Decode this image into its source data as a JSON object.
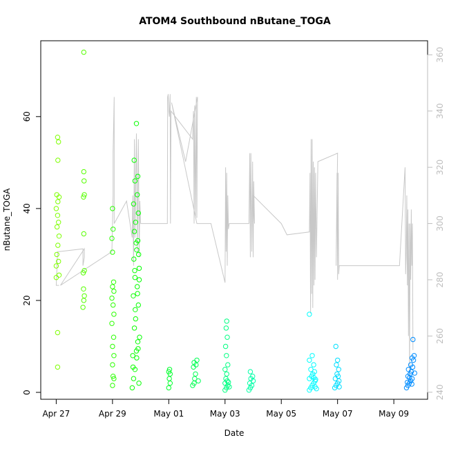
{
  "chart_data": {
    "type": "scatter",
    "title": "ATOM4 Southbound nButane_TOGA",
    "xlabel": "Date",
    "ylabel": "nButane_TOGA",
    "x_ticks": [
      "Apr 27",
      "Apr 29",
      "May 01",
      "May 03",
      "May 05",
      "May 07",
      "May 09"
    ],
    "x_tick_days": [
      0,
      2,
      4,
      6,
      8,
      10,
      12
    ],
    "y_ticks": [
      0,
      20,
      40,
      60
    ],
    "y_right_ticks": [
      240,
      260,
      280,
      300,
      320,
      340,
      360
    ],
    "xlim_days": [
      -0.55,
      13.2
    ],
    "ylim": [
      -1.5,
      76.5
    ],
    "y_right_lim": [
      237.5,
      365
    ],
    "x_unit": "days since Apr 27",
    "grid": false,
    "series": [
      {
        "type": "scatter",
        "points": [
          [
            0.05,
            5.5
          ],
          [
            0.05,
            13
          ],
          [
            0.0,
            25
          ],
          [
            0.1,
            25.5
          ],
          [
            0.0,
            27.5
          ],
          [
            0.08,
            28.5
          ],
          [
            0.02,
            30
          ],
          [
            0.06,
            32
          ],
          [
            0.1,
            34
          ],
          [
            0.03,
            36
          ],
          [
            0.08,
            37
          ],
          [
            0.05,
            38.5
          ],
          [
            0.0,
            40
          ],
          [
            0.06,
            41.5
          ],
          [
            0.1,
            42.5
          ],
          [
            0.02,
            43
          ],
          [
            0.06,
            50.5
          ],
          [
            0.08,
            54.5
          ],
          [
            0.05,
            55.5
          ],
          [
            0.95,
            18.5
          ],
          [
            0.98,
            20
          ],
          [
            1.0,
            21
          ],
          [
            0.97,
            22.5
          ],
          [
            0.96,
            26
          ],
          [
            1.0,
            26.5
          ],
          [
            0.98,
            34.5
          ],
          [
            0.97,
            42.5
          ],
          [
            1.0,
            43
          ],
          [
            0.99,
            46
          ],
          [
            0.98,
            48
          ],
          [
            0.98,
            74
          ],
          [
            2.0,
            1.5
          ],
          [
            2.05,
            3
          ],
          [
            2.02,
            3.5
          ],
          [
            2.0,
            6
          ],
          [
            2.05,
            8
          ],
          [
            2.0,
            10
          ],
          [
            2.04,
            12
          ],
          [
            1.98,
            15
          ],
          [
            2.05,
            17
          ],
          [
            2.02,
            19
          ],
          [
            1.98,
            20.5
          ],
          [
            2.05,
            22
          ],
          [
            2.0,
            23
          ],
          [
            2.04,
            24
          ],
          [
            2.0,
            30.5
          ],
          [
            1.98,
            33.5
          ],
          [
            2.02,
            35.5
          ],
          [
            2.0,
            40
          ],
          [
            2.7,
            1
          ],
          [
            2.75,
            3
          ],
          [
            2.8,
            5
          ],
          [
            2.72,
            8
          ],
          [
            2.85,
            9
          ],
          [
            2.9,
            11
          ],
          [
            2.78,
            14
          ],
          [
            2.82,
            16
          ],
          [
            2.92,
            19
          ],
          [
            2.74,
            21
          ],
          [
            2.88,
            23
          ],
          [
            2.8,
            25
          ],
          [
            2.95,
            27
          ],
          [
            2.76,
            29
          ],
          [
            2.86,
            31
          ],
          [
            2.9,
            33
          ],
          [
            2.78,
            35
          ],
          [
            2.82,
            37
          ],
          [
            2.92,
            39
          ],
          [
            2.75,
            41
          ],
          [
            2.88,
            43
          ],
          [
            2.8,
            46
          ],
          [
            2.9,
            47
          ],
          [
            2.77,
            50.5
          ],
          [
            2.85,
            58.5
          ],
          [
            2.94,
            2
          ],
          [
            2.73,
            5.5
          ],
          [
            2.96,
            12
          ],
          [
            2.81,
            18
          ],
          [
            2.89,
            21.5
          ],
          [
            2.95,
            24.5
          ],
          [
            2.79,
            26.5
          ],
          [
            2.93,
            30
          ],
          [
            2.84,
            32.5
          ],
          [
            2.91,
            9.5
          ],
          [
            2.86,
            7.5
          ],
          [
            4.0,
            1
          ],
          [
            4.05,
            2
          ],
          [
            4.02,
            3
          ],
          [
            4.05,
            4
          ],
          [
            4.0,
            4.5
          ],
          [
            4.03,
            5
          ],
          [
            4.85,
            1.5
          ],
          [
            4.9,
            2
          ],
          [
            4.92,
            3
          ],
          [
            4.95,
            4
          ],
          [
            4.88,
            5.5
          ],
          [
            4.97,
            6
          ],
          [
            4.9,
            6.5
          ],
          [
            5.0,
            7
          ],
          [
            5.05,
            2.5
          ],
          [
            6.0,
            0.5
          ],
          [
            6.05,
            1
          ],
          [
            6.1,
            1.5
          ],
          [
            6.0,
            2
          ],
          [
            6.08,
            2.5
          ],
          [
            6.03,
            3
          ],
          [
            6.06,
            4
          ],
          [
            6.0,
            5
          ],
          [
            6.1,
            6
          ],
          [
            6.05,
            8
          ],
          [
            6.02,
            10
          ],
          [
            6.08,
            12
          ],
          [
            6.04,
            14
          ],
          [
            6.06,
            15.5
          ],
          [
            6.12,
            2.2
          ],
          [
            6.15,
            1.2
          ],
          [
            6.85,
            0.5
          ],
          [
            6.9,
            1
          ],
          [
            6.95,
            1.5
          ],
          [
            6.88,
            2
          ],
          [
            7.0,
            2.5
          ],
          [
            6.92,
            3
          ],
          [
            6.98,
            3.5
          ],
          [
            6.9,
            4.5
          ],
          [
            9.0,
            0.5
          ],
          [
            9.05,
            1
          ],
          [
            9.1,
            1.5
          ],
          [
            9.15,
            2
          ],
          [
            9.2,
            2.5
          ],
          [
            9.0,
            3
          ],
          [
            9.08,
            3.5
          ],
          [
            9.12,
            4
          ],
          [
            9.18,
            4.5
          ],
          [
            9.05,
            5
          ],
          [
            9.15,
            6
          ],
          [
            9.0,
            7
          ],
          [
            9.1,
            8
          ],
          [
            9.2,
            1.2
          ],
          [
            9.25,
            0.8
          ],
          [
            9.0,
            17
          ],
          [
            9.22,
            2.8
          ],
          [
            9.16,
            3.2
          ],
          [
            9.9,
            1
          ],
          [
            9.95,
            1.5
          ],
          [
            10.0,
            2
          ],
          [
            10.05,
            2.5
          ],
          [
            9.92,
            3
          ],
          [
            10.02,
            3.5
          ],
          [
            9.98,
            4
          ],
          [
            10.04,
            5
          ],
          [
            9.96,
            6
          ],
          [
            10.0,
            7
          ],
          [
            9.94,
            10
          ],
          [
            10.06,
            1.2
          ],
          [
            12.45,
            1
          ],
          [
            12.5,
            1.5
          ],
          [
            12.55,
            2
          ],
          [
            12.6,
            2.5
          ],
          [
            12.65,
            3
          ],
          [
            12.5,
            3.5
          ],
          [
            12.58,
            4
          ],
          [
            12.62,
            4.5
          ],
          [
            12.52,
            5
          ],
          [
            12.67,
            5.5
          ],
          [
            12.6,
            6
          ],
          [
            12.7,
            7
          ],
          [
            12.65,
            7.5
          ],
          [
            12.72,
            8
          ],
          [
            12.68,
            11.5
          ],
          [
            12.48,
            2.2
          ],
          [
            12.56,
            3.2
          ],
          [
            12.64,
            1.8
          ],
          [
            12.74,
            4.2
          ]
        ]
      },
      {
        "type": "line",
        "axis": "right",
        "points": [
          [
            0.1,
            278
          ],
          [
            0.0,
            278
          ],
          [
            0.05,
            290
          ],
          [
            0.1,
            290
          ],
          [
            0.95,
            291
          ],
          [
            0.95,
            285
          ],
          [
            1.0,
            288
          ],
          [
            1.0,
            291
          ],
          [
            0.15,
            278
          ],
          [
            1.98,
            290
          ],
          [
            2.02,
            310
          ],
          [
            2.02,
            325
          ],
          [
            2.06,
            345
          ],
          [
            2.06,
            300
          ],
          [
            2.5,
            308
          ],
          [
            2.7,
            295
          ],
          [
            2.72,
            310
          ],
          [
            2.75,
            285
          ],
          [
            2.78,
            330
          ],
          [
            2.8,
            295
          ],
          [
            2.85,
            332
          ],
          [
            2.88,
            290
          ],
          [
            2.92,
            330
          ],
          [
            2.95,
            288
          ],
          [
            2.97,
            308
          ],
          [
            3.0,
            300
          ],
          [
            3.95,
            300
          ],
          [
            3.96,
            345
          ],
          [
            3.98,
            346
          ],
          [
            4.0,
            340
          ],
          [
            4.02,
            338
          ],
          [
            4.05,
            346
          ],
          [
            4.06,
            300
          ],
          [
            4.08,
            340
          ],
          [
            4.85,
            330
          ],
          [
            4.88,
            340
          ],
          [
            4.9,
            300
          ],
          [
            4.92,
            342
          ],
          [
            4.95,
            302
          ],
          [
            4.98,
            345
          ],
          [
            5.0,
            302
          ],
          [
            5.02,
            345
          ],
          [
            4.6,
            322
          ],
          [
            4.1,
            343
          ],
          [
            5.0,
            300
          ],
          [
            5.5,
            300
          ],
          [
            6.0,
            279
          ],
          [
            6.02,
            320
          ],
          [
            6.04,
            290
          ],
          [
            6.06,
            318
          ],
          [
            6.08,
            285
          ],
          [
            6.1,
            310
          ],
          [
            6.12,
            298
          ],
          [
            6.15,
            300
          ],
          [
            6.85,
            300
          ],
          [
            6.88,
            325
          ],
          [
            6.9,
            288
          ],
          [
            6.92,
            325
          ],
          [
            6.95,
            290
          ],
          [
            6.98,
            322
          ],
          [
            7.0,
            288
          ],
          [
            7.02,
            315
          ],
          [
            7.05,
            300
          ],
          [
            7.0,
            310
          ],
          [
            8.0,
            300
          ],
          [
            8.2,
            296
          ],
          [
            9.0,
            297
          ],
          [
            9.02,
            318
          ],
          [
            9.04,
            268
          ],
          [
            9.06,
            330
          ],
          [
            9.08,
            275
          ],
          [
            9.1,
            330
          ],
          [
            9.12,
            270
          ],
          [
            9.14,
            322
          ],
          [
            9.16,
            278
          ],
          [
            9.18,
            320
          ],
          [
            9.2,
            280
          ],
          [
            9.22,
            318
          ],
          [
            9.25,
            288
          ],
          [
            9.3,
            322
          ],
          [
            10.0,
            325
          ],
          [
            9.95,
            285
          ],
          [
            9.98,
            318
          ],
          [
            10.0,
            280
          ],
          [
            10.02,
            318
          ],
          [
            10.04,
            282
          ],
          [
            10.06,
            285
          ],
          [
            12.2,
            285
          ],
          [
            12.4,
            320
          ],
          [
            12.42,
            282
          ],
          [
            12.44,
            288
          ],
          [
            12.46,
            310
          ],
          [
            12.48,
            278
          ],
          [
            12.5,
            305
          ],
          [
            12.52,
            260
          ],
          [
            12.54,
            300
          ],
          [
            12.56,
            245
          ],
          [
            12.58,
            300
          ],
          [
            12.6,
            280
          ],
          [
            12.62,
            305
          ],
          [
            12.64,
            285
          ],
          [
            12.66,
            300
          ],
          [
            12.68,
            255
          ]
        ]
      }
    ]
  }
}
